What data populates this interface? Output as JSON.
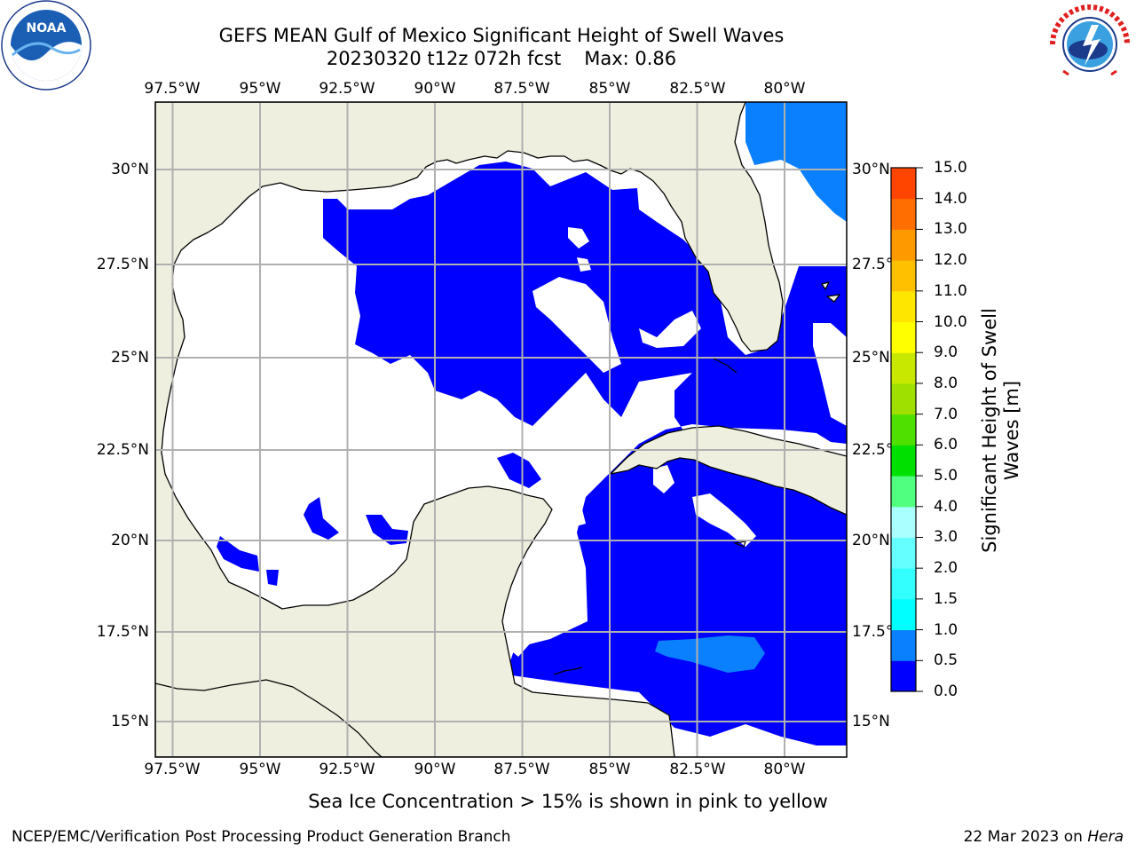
{
  "title": {
    "line1": "GEFS MEAN Gulf of Mexico Significant Height of Swell Waves",
    "line2_run": "20230320 t12z 072h fcst",
    "line2_max": "Max: 0.86"
  },
  "map": {
    "lon_range": [
      -98.5,
      -78.7
    ],
    "lat_range": [
      14,
      31.8
    ],
    "lon_ticks": [
      "97.5°W",
      "95°W",
      "92.5°W",
      "90°W",
      "87.5°W",
      "85°W",
      "82.5°W",
      "80°W"
    ],
    "lon_tick_values": [
      -97.5,
      -95,
      -92.5,
      -90,
      -87.5,
      -85,
      -82.5,
      -80
    ],
    "lat_ticks": [
      "15°N",
      "17.5°N",
      "20°N",
      "22.5°N",
      "25°N",
      "27.5°N",
      "30°N"
    ],
    "lat_tick_values": [
      15,
      17.5,
      20,
      22.5,
      25,
      27.5,
      30
    ],
    "land_color": "#efefdf",
    "grid": true,
    "grid_color": "#b0b0b0"
  },
  "colorbar": {
    "label": "Significant Height of Swell Waves [m]",
    "tick_labels": [
      "0.0",
      "0.5",
      "1.0",
      "1.5",
      "2.0",
      "3.0",
      "4.0",
      "5.0",
      "6.0",
      "7.0",
      "8.0",
      "9.0",
      "10.0",
      "11.0",
      "12.0",
      "13.0",
      "14.0",
      "15.0"
    ],
    "colors": [
      "#0000ff",
      "#0a80ff",
      "#00ffff",
      "#33ffff",
      "#66ffff",
      "#aaffff",
      "#50ff80",
      "#00e000",
      "#50e000",
      "#a0e000",
      "#c8e800",
      "#ffff00",
      "#ffe600",
      "#ffc000",
      "#ff9900",
      "#ff6e00",
      "#ff4500",
      "#ff0000"
    ]
  },
  "legend_note": "Sea Ice Concentration > 15% is shown in pink to yellow",
  "footer": {
    "left": "NCEP/EMC/Verification Post Processing Product Generation Branch",
    "date": "22 Mar 2023 on",
    "host": "Hera"
  },
  "logos": {
    "left_icon": "noaa-logo",
    "left_text": "NOAA",
    "right_icon": "nws-logo",
    "right_text": "NATIONAL WEATHER SERVICE"
  }
}
